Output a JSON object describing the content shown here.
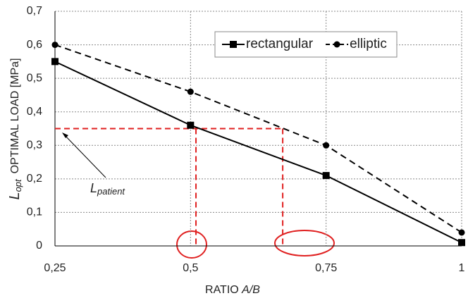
{
  "chart_data": {
    "type": "line",
    "x": [
      0.25,
      0.5,
      0.75,
      1
    ],
    "xlim": [
      0.25,
      1
    ],
    "xticks": [
      {
        "value": 0.25,
        "label": "0,25"
      },
      {
        "value": 0.5,
        "label": "0,5"
      },
      {
        "value": 0.75,
        "label": "0,75"
      },
      1
    ],
    "ylim": [
      0,
      0.7
    ],
    "yticks": [
      0,
      {
        "value": 0.1,
        "label": "0,1"
      },
      {
        "value": 0.2,
        "label": "0,2"
      },
      {
        "value": 0.3,
        "label": "0,3"
      },
      {
        "value": 0.4,
        "label": "0,4"
      },
      {
        "value": 0.5,
        "label": "0,5"
      },
      {
        "value": 0.6,
        "label": "0,6"
      },
      {
        "value": 0.7,
        "label": "0,7"
      }
    ],
    "grid": true,
    "legend": "top-right",
    "x_label": {
      "text": "RATIO ",
      "italic": "A/B"
    },
    "y_label": {
      "symbol": "L",
      "subscript": "opt",
      "text": "OPTIMAL LOAD [MPa]"
    },
    "series": [
      {
        "name": "rectangular",
        "color": "#000000",
        "dash": false,
        "marker": "square",
        "values": [
          0.55,
          0.36,
          0.21,
          0.01
        ]
      },
      {
        "name": "elliptic",
        "color": "#000000",
        "dash": true,
        "marker": "circle",
        "values": [
          0.6,
          0.46,
          0.3,
          0.04
        ]
      }
    ],
    "reference": {
      "symbol": "L",
      "subscript": "patient",
      "value": 0.35,
      "crossings": [
        0.51,
        0.67
      ],
      "color": "#e02020"
    }
  }
}
